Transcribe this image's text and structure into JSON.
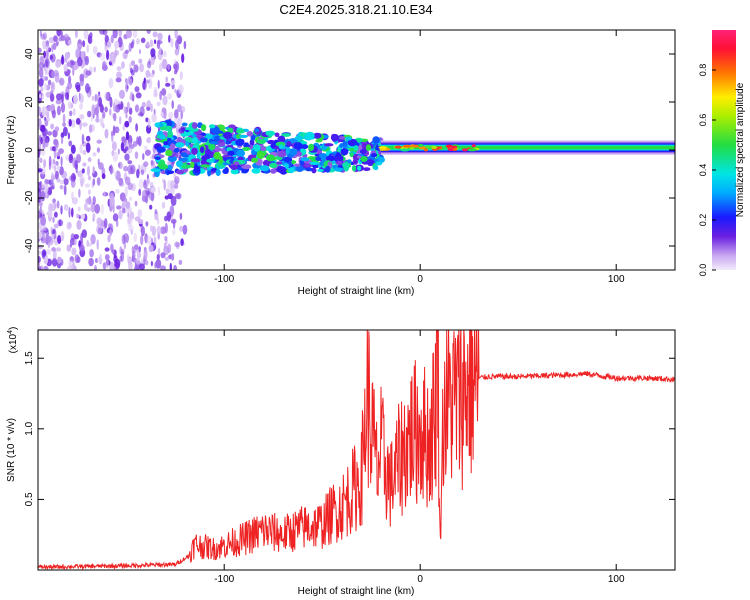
{
  "title": "C2E4.2025.318.21.10.E34",
  "chart_data": [
    {
      "type": "heatmap",
      "name": "spectrogram",
      "title": "C2E4.2025.318.21.10.E34",
      "xlabel": "Height of straight line (km)",
      "ylabel": "Frequency (Hz)",
      "xlim": [
        -195,
        130
      ],
      "ylim": [
        -50,
        50
      ],
      "xticks": [
        -100,
        0,
        100
      ],
      "yticks": [
        -40,
        -20,
        0,
        20,
        40
      ],
      "colorbar": {
        "label": "Normalized spectral amplitude",
        "range": [
          0,
          0.96
        ],
        "ticks": [
          "0.0",
          "0.2",
          "0.4",
          "0.6",
          "0.8"
        ],
        "colormap": "rainbow"
      },
      "regions": [
        {
          "name": "noise",
          "x": [
            -195,
            -120
          ],
          "freq": [
            -50,
            50
          ],
          "amplitude": [
            0.02,
            0.15
          ]
        },
        {
          "name": "scattered",
          "x": [
            -135,
            -20
          ],
          "freq": [
            -10,
            12
          ],
          "amplitude": [
            0.1,
            0.55
          ]
        },
        {
          "name": "line",
          "x": [
            -20,
            130
          ],
          "freq_center": 1,
          "freq_width": 6,
          "amplitude": [
            0.4,
            0.96
          ]
        }
      ]
    },
    {
      "type": "line",
      "name": "snr",
      "xlabel": "Height of straight line (km)",
      "ylabel": "SNR (10 * v/v)",
      "multiplier": "(x10^4)",
      "multiplier_base": "(x10",
      "multiplier_exp": "4",
      "multiplier_close": ")",
      "xlim": [
        -195,
        130
      ],
      "ylim": [
        0,
        1.7
      ],
      "xticks": [
        -100,
        0,
        100
      ],
      "yticks": [
        "0.5",
        "1.0",
        "1.5"
      ],
      "color": "#ee2222",
      "series": [
        {
          "name": "SNR",
          "x": [
            -195,
            -150,
            -125,
            -118,
            -115,
            -105,
            -90,
            -80,
            -70,
            -60,
            -50,
            -45,
            -40,
            -35,
            -30,
            -27,
            -22,
            -20,
            -15,
            -10,
            -5,
            0,
            5,
            8,
            9,
            10,
            12,
            15,
            20,
            25,
            30,
            35,
            50,
            70,
            85,
            100,
            115,
            130
          ],
          "y": [
            0.02,
            0.03,
            0.04,
            0.1,
            0.18,
            0.15,
            0.22,
            0.28,
            0.25,
            0.3,
            0.32,
            0.4,
            0.45,
            0.55,
            0.65,
            1.25,
            0.7,
            0.85,
            0.6,
            0.8,
            0.95,
            1.0,
            0.9,
            1.2,
            1.65,
            0.25,
            1.15,
            1.2,
            1.22,
            1.32,
            1.36,
            1.37,
            1.37,
            1.38,
            1.39,
            1.36,
            1.36,
            1.35
          ]
        }
      ]
    }
  ]
}
